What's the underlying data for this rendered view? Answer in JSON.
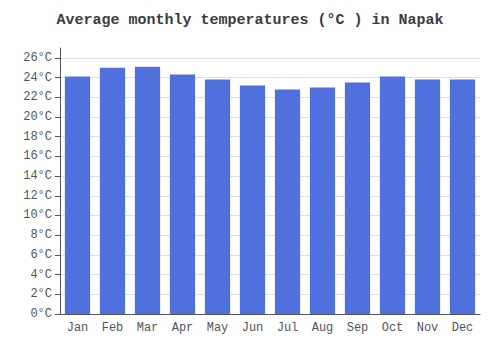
{
  "chart_data": {
    "type": "bar",
    "title": "Average monthly temperatures (°C ) in Napak",
    "categories": [
      "Jan",
      "Feb",
      "Mar",
      "Apr",
      "May",
      "Jun",
      "Jul",
      "Aug",
      "Sep",
      "Oct",
      "Nov",
      "Dec"
    ],
    "values": [
      24.1,
      25.0,
      25.1,
      24.3,
      23.8,
      23.2,
      22.8,
      23.0,
      23.5,
      24.1,
      23.8,
      23.8
    ],
    "ylim": [
      0,
      27
    ],
    "yticks": [
      {
        "value": 0,
        "label": "0°C"
      },
      {
        "value": 2,
        "label": "2°C"
      },
      {
        "value": 4,
        "label": "4°C"
      },
      {
        "value": 6,
        "label": "6°C"
      },
      {
        "value": 8,
        "label": "8°C"
      },
      {
        "value": 10,
        "label": "10°C"
      },
      {
        "value": 12,
        "label": "12°C"
      },
      {
        "value": 14,
        "label": "14°C"
      },
      {
        "value": 16,
        "label": "16°C"
      },
      {
        "value": 18,
        "label": "18°C"
      },
      {
        "value": 20,
        "label": "20°C"
      },
      {
        "value": 22,
        "label": "22°C"
      },
      {
        "value": 24,
        "label": "24°C"
      },
      {
        "value": 26,
        "label": "26°C"
      }
    ],
    "grid": true
  }
}
